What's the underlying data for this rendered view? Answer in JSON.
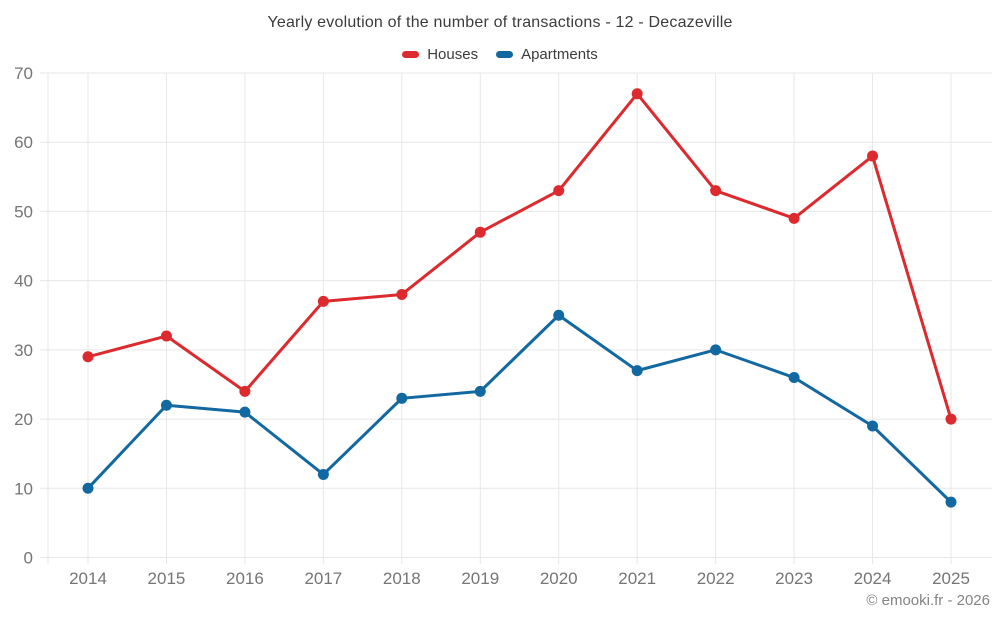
{
  "chart_data": {
    "type": "line",
    "title": "Yearly evolution of the number of transactions - 12 - Decazeville",
    "x": [
      "2014",
      "2015",
      "2016",
      "2017",
      "2018",
      "2019",
      "2020",
      "2021",
      "2022",
      "2023",
      "2024",
      "2025"
    ],
    "series": [
      {
        "name": "Houses",
        "color": "#dc2a2e",
        "values": [
          29,
          32,
          24,
          37,
          38,
          47,
          53,
          67,
          53,
          49,
          58,
          20
        ]
      },
      {
        "name": "Apartments",
        "color": "#1268a0",
        "values": [
          10,
          22,
          21,
          12,
          23,
          24,
          35,
          27,
          30,
          26,
          19,
          8
        ]
      }
    ],
    "ylim": [
      0,
      70
    ],
    "yticks": [
      0,
      10,
      20,
      30,
      40,
      50,
      60,
      70
    ],
    "grid": true,
    "legend_position": "top"
  },
  "footer": {
    "credit": "© emooki.fr - 2026"
  },
  "colors": {
    "grid": "#e7e7e7",
    "axis_text": "#757575",
    "title_text": "#3c3c3c",
    "background": "#ffffff"
  }
}
